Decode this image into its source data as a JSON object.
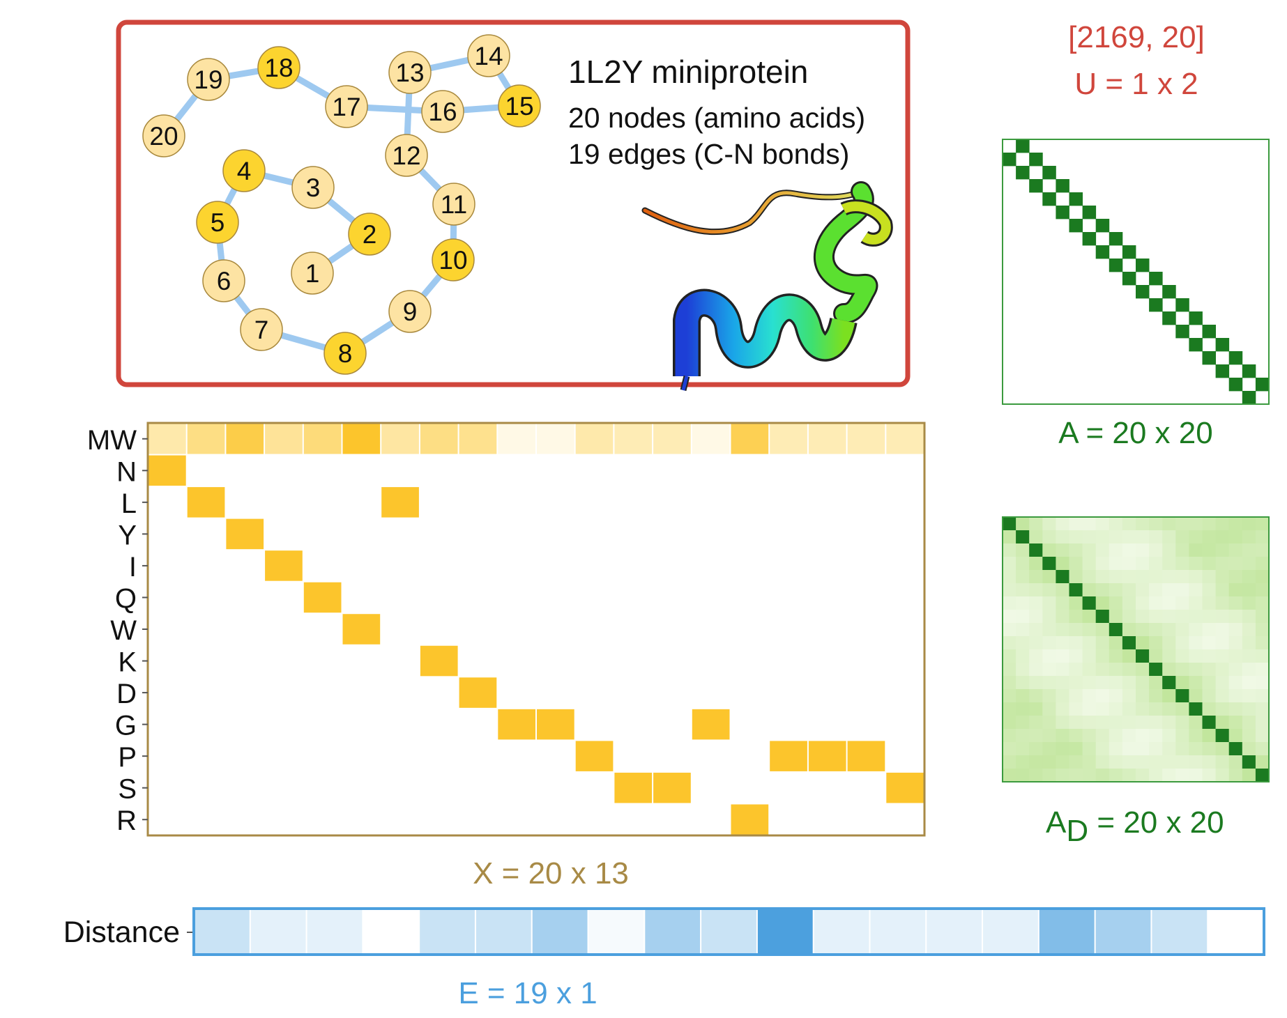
{
  "colors": {
    "graph_border": "#d0463c",
    "edge": "#9ec9f0",
    "node_light": "#fde3a3",
    "node_dark": "#fcd42f",
    "node_stroke": "#a8883c",
    "feature_border": "#a88a46",
    "feature_on": "#fcc52c",
    "adj_dark": "#1b7a20",
    "adj_border": "#3b9a3e",
    "dist_border": "#4b9fde",
    "title_red": "#d0463c",
    "label_gold": "#a88a46",
    "label_green": "#1b7a20",
    "label_blue": "#4b9fde"
  },
  "graph": {
    "title": "1L2Y miniprotein",
    "nodes_text": "20 nodes (amino acids)",
    "edges_text": "19 edges (C-N bonds)",
    "nodes": [
      {
        "label": "1",
        "shade": "light"
      },
      {
        "label": "2",
        "shade": "dark"
      },
      {
        "label": "3",
        "shade": "light"
      },
      {
        "label": "4",
        "shade": "dark"
      },
      {
        "label": "5",
        "shade": "dark"
      },
      {
        "label": "6",
        "shade": "light"
      },
      {
        "label": "7",
        "shade": "light"
      },
      {
        "label": "8",
        "shade": "dark"
      },
      {
        "label": "9",
        "shade": "light"
      },
      {
        "label": "10",
        "shade": "dark"
      },
      {
        "label": "11",
        "shade": "light"
      },
      {
        "label": "12",
        "shade": "light"
      },
      {
        "label": "13",
        "shade": "light"
      },
      {
        "label": "14",
        "shade": "light"
      },
      {
        "label": "15",
        "shade": "dark"
      },
      {
        "label": "16",
        "shade": "light"
      },
      {
        "label": "17",
        "shade": "light"
      },
      {
        "label": "18",
        "shade": "dark"
      },
      {
        "label": "19",
        "shade": "light"
      },
      {
        "label": "20",
        "shade": "light"
      }
    ]
  },
  "global_features": {
    "line1": "[2169, 20]",
    "line2": "U = 1 x 2"
  },
  "adjacency": {
    "label": "A = 20 x 20",
    "size": 20
  },
  "adjacency_distance": {
    "label_prefix": "A",
    "label_sub": "D",
    "label_suffix": " = 20 x 20"
  },
  "node_features": {
    "label": "X = 20 x 13",
    "row_labels": [
      "MW",
      "N",
      "L",
      "Y",
      "I",
      "Q",
      "W",
      "K",
      "D",
      "G",
      "P",
      "S",
      "R"
    ],
    "mw_intensity": [
      0.35,
      0.55,
      0.85,
      0.45,
      0.6,
      1.0,
      0.4,
      0.55,
      0.5,
      0.05,
      0.05,
      0.35,
      0.3,
      0.3,
      0.05,
      0.8,
      0.3,
      0.3,
      0.3,
      0.3
    ],
    "residue_row": [
      1,
      2,
      3,
      4,
      5,
      6,
      2,
      7,
      8,
      9,
      9,
      10,
      11,
      11,
      9,
      12,
      10,
      10,
      10,
      11
    ]
  },
  "edge_features": {
    "row_label": "Distance",
    "label": "E = 19 x 1",
    "intensity": [
      0.3,
      0.15,
      0.15,
      0.0,
      0.3,
      0.3,
      0.5,
      0.05,
      0.5,
      0.3,
      1.0,
      0.15,
      0.15,
      0.15,
      0.15,
      0.7,
      0.5,
      0.3,
      0.0
    ]
  }
}
